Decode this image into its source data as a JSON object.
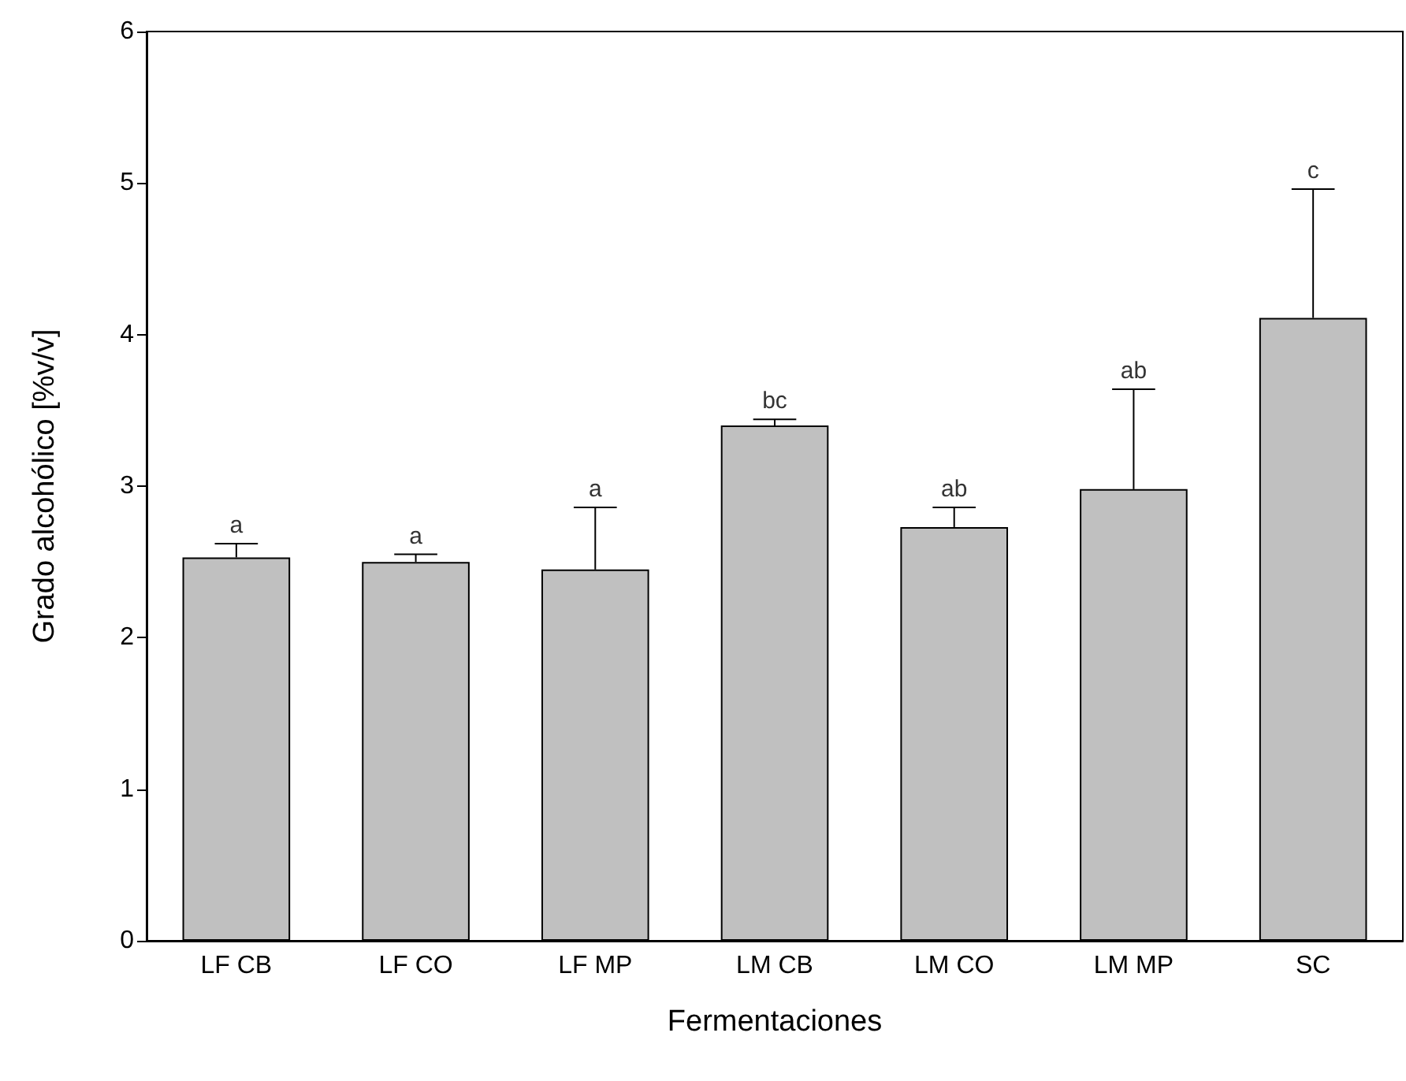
{
  "chart_data": {
    "type": "bar",
    "xlabel": "Fermentaciones",
    "ylabel": "Grado alcohólico [%v/v]",
    "categories": [
      "LF CB",
      "LF CO",
      "LF MP",
      "LM CB",
      "LM CO",
      "LM MP",
      "SC"
    ],
    "values": [
      2.53,
      2.5,
      2.45,
      3.4,
      2.73,
      2.98,
      4.11
    ],
    "errors": [
      [
        2.53,
        2.62
      ],
      [
        2.5,
        2.55
      ],
      [
        2.45,
        2.86
      ],
      [
        3.4,
        3.44
      ],
      [
        2.73,
        2.86
      ],
      [
        2.98,
        3.64
      ],
      [
        4.11,
        4.96
      ]
    ],
    "color": "#c0c0c0",
    "ylim": [
      0,
      6
    ],
    "yticks": [
      0,
      1,
      2,
      3,
      4,
      5,
      6
    ],
    "grid": false,
    "annotations": [
      {
        "text": "a",
        "x": "LF CB",
        "y": 2.62
      },
      {
        "text": "a",
        "x": "LF CO",
        "y": 2.55
      },
      {
        "text": "a",
        "x": "LF MP",
        "y": 2.86
      },
      {
        "text": "bc",
        "x": "LM CB",
        "y": 3.44
      },
      {
        "text": "ab",
        "x": "LM CO",
        "y": 2.86
      },
      {
        "text": "ab",
        "x": "LM MP",
        "y": 3.64
      },
      {
        "text": "c",
        "x": "SC",
        "y": 4.96
      }
    ]
  }
}
